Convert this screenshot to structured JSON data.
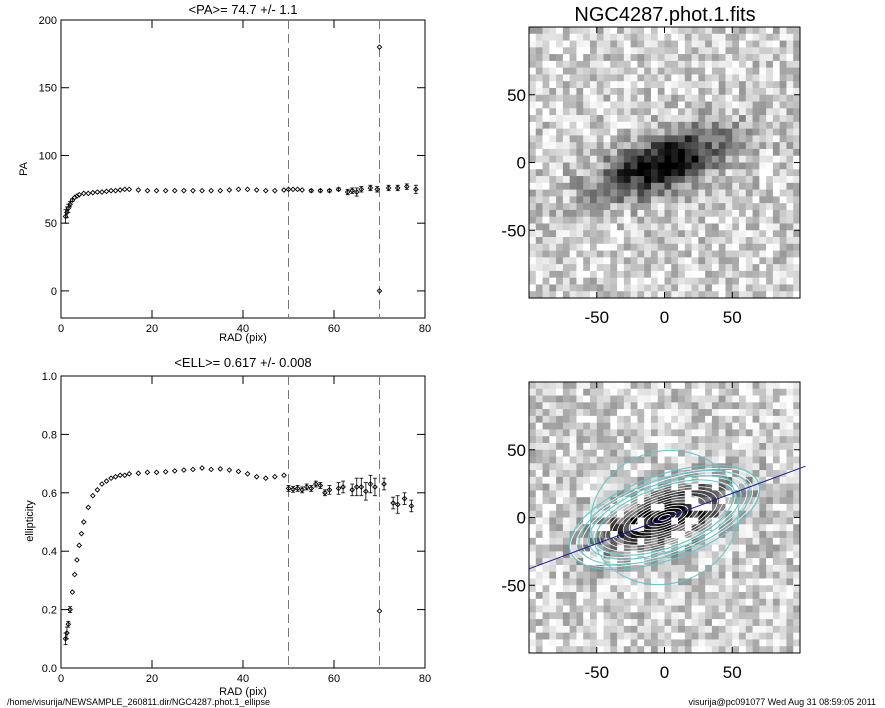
{
  "page": {
    "footer_left": "/home/visurija/NEWSAMPLE_260811.dir/NGC4287.phot.1_ellipse",
    "footer_right": "visurija@pc091077  Wed Aug 31 08:59:05 2011"
  },
  "chart_data": [
    {
      "type": "scatter",
      "title": "<PA>=  74.7 +/-   1.1",
      "xlabel": "RAD (pix)",
      "ylabel": "PA",
      "xlim": [
        0,
        80
      ],
      "ylim": [
        -20,
        200
      ],
      "xticks": [
        0,
        20,
        40,
        60,
        80
      ],
      "yticks": [
        0,
        50,
        100,
        150,
        200
      ],
      "vlines": [
        50,
        70
      ],
      "points": [
        [
          1.0,
          55,
          5
        ],
        [
          1.3,
          58,
          4
        ],
        [
          1.6,
          61,
          3
        ],
        [
          2.0,
          64,
          2
        ],
        [
          2.5,
          67,
          1
        ],
        [
          3.0,
          69,
          0
        ],
        [
          3.5,
          70,
          0
        ],
        [
          4.0,
          71,
          0
        ],
        [
          5,
          72,
          0
        ],
        [
          6,
          72,
          0
        ],
        [
          7,
          72.5,
          0
        ],
        [
          8,
          73,
          0
        ],
        [
          9,
          73,
          0
        ],
        [
          10,
          73.5,
          0
        ],
        [
          11,
          74,
          0
        ],
        [
          12,
          74,
          0
        ],
        [
          13,
          74.5,
          0
        ],
        [
          14,
          75,
          0
        ],
        [
          15,
          75,
          0
        ],
        [
          17,
          74.5,
          0
        ],
        [
          19,
          74,
          0
        ],
        [
          21,
          74,
          0
        ],
        [
          23,
          74,
          0
        ],
        [
          25,
          74,
          0
        ],
        [
          27,
          74,
          0
        ],
        [
          29,
          74,
          0
        ],
        [
          31,
          74,
          0
        ],
        [
          33,
          74,
          0
        ],
        [
          35,
          74,
          0
        ],
        [
          37,
          74.5,
          0
        ],
        [
          39,
          75,
          0
        ],
        [
          41,
          75,
          0
        ],
        [
          43,
          74.5,
          0
        ],
        [
          45,
          74,
          0
        ],
        [
          47,
          74,
          0
        ],
        [
          49,
          74.5,
          0
        ],
        [
          50,
          75,
          0
        ],
        [
          51,
          75,
          0
        ],
        [
          52,
          75,
          0
        ],
        [
          53,
          74.5,
          0
        ],
        [
          55,
          74,
          1
        ],
        [
          57,
          74,
          1
        ],
        [
          59,
          74,
          1
        ],
        [
          61,
          75,
          1
        ],
        [
          63,
          73,
          2
        ],
        [
          64,
          74,
          2
        ],
        [
          65,
          73,
          3
        ],
        [
          66,
          75,
          2
        ],
        [
          68,
          76,
          2
        ],
        [
          69.5,
          75,
          2
        ],
        [
          70,
          0,
          0
        ],
        [
          70,
          180,
          0
        ],
        [
          72,
          76,
          2
        ],
        [
          74,
          76,
          2
        ],
        [
          76,
          77,
          2
        ],
        [
          78,
          75,
          3
        ]
      ]
    },
    {
      "type": "scatter",
      "title": "<ELL>= 0.617 +/-  0.008",
      "xlabel": "RAD (pix)",
      "ylabel": "ellipticity",
      "xlim": [
        0,
        80
      ],
      "ylim": [
        0,
        1
      ],
      "xticks": [
        0,
        20,
        40,
        60,
        80
      ],
      "yticks": [
        0.0,
        0.2,
        0.4,
        0.6,
        0.8,
        1.0
      ],
      "vlines": [
        50,
        70
      ],
      "points": [
        [
          1.0,
          0.1,
          0.02
        ],
        [
          1.3,
          0.12,
          0.02
        ],
        [
          1.6,
          0.15,
          0.01
        ],
        [
          2.0,
          0.2,
          0.01
        ],
        [
          2.5,
          0.26,
          0
        ],
        [
          3.0,
          0.32,
          0
        ],
        [
          3.5,
          0.37,
          0
        ],
        [
          4.0,
          0.42,
          0
        ],
        [
          4.5,
          0.46,
          0
        ],
        [
          5,
          0.5,
          0
        ],
        [
          6,
          0.55,
          0
        ],
        [
          7,
          0.59,
          0
        ],
        [
          8,
          0.61,
          0
        ],
        [
          9,
          0.63,
          0
        ],
        [
          10,
          0.64,
          0
        ],
        [
          11,
          0.65,
          0
        ],
        [
          12,
          0.655,
          0
        ],
        [
          13,
          0.66,
          0
        ],
        [
          14,
          0.66,
          0
        ],
        [
          15,
          0.665,
          0
        ],
        [
          17,
          0.667,
          0
        ],
        [
          19,
          0.67,
          0
        ],
        [
          21,
          0.67,
          0
        ],
        [
          23,
          0.672,
          0
        ],
        [
          25,
          0.675,
          0
        ],
        [
          27,
          0.678,
          0
        ],
        [
          29,
          0.68,
          0
        ],
        [
          31,
          0.685,
          0
        ],
        [
          33,
          0.68,
          0
        ],
        [
          35,
          0.682,
          0
        ],
        [
          37,
          0.678,
          0
        ],
        [
          39,
          0.673,
          0
        ],
        [
          41,
          0.665,
          0
        ],
        [
          43,
          0.655,
          0
        ],
        [
          45,
          0.65,
          0
        ],
        [
          47,
          0.655,
          0
        ],
        [
          49,
          0.66,
          0
        ],
        [
          50,
          0.615,
          0.01
        ],
        [
          51,
          0.612,
          0.01
        ],
        [
          52,
          0.615,
          0.01
        ],
        [
          53,
          0.61,
          0.01
        ],
        [
          54,
          0.62,
          0.01
        ],
        [
          55,
          0.615,
          0.01
        ],
        [
          56,
          0.63,
          0.01
        ],
        [
          57,
          0.625,
          0.01
        ],
        [
          58,
          0.6,
          0.01
        ],
        [
          59,
          0.61,
          0.015
        ],
        [
          61,
          0.615,
          0.02
        ],
        [
          62,
          0.62,
          0.02
        ],
        [
          64,
          0.61,
          0.02
        ],
        [
          65,
          0.62,
          0.03
        ],
        [
          66,
          0.62,
          0.03
        ],
        [
          67,
          0.605,
          0.03
        ],
        [
          68,
          0.63,
          0.03
        ],
        [
          69,
          0.62,
          0.03
        ],
        [
          70,
          0.195,
          0
        ],
        [
          71,
          0.63,
          0.02
        ],
        [
          73,
          0.565,
          0.02
        ],
        [
          74,
          0.56,
          0.03
        ],
        [
          75.5,
          0.58,
          0.02
        ],
        [
          77,
          0.555,
          0.02
        ]
      ]
    },
    {
      "type": "heatmap",
      "title": "NGC4287.phot.1.fits",
      "xlim": [
        -100,
        100
      ],
      "ylim": [
        -100,
        100
      ],
      "xticks": [
        -50,
        0,
        50
      ],
      "yticks": [
        -50,
        0,
        50
      ],
      "galaxy_center": [
        0,
        0
      ],
      "galaxy_pa_deg": 74.7,
      "galaxy_ellipticity": 0.617,
      "colors": "grayscale"
    },
    {
      "type": "heatmap",
      "xlim": [
        -100,
        100
      ],
      "ylim": [
        -100,
        100
      ],
      "xticks": [
        -50,
        0,
        50
      ],
      "yticks": [
        -50,
        0,
        50
      ],
      "isophote_color": "#ffffff",
      "outer_isophote_color": "#5fc9c9",
      "major_axis_color": "#1a1aa0",
      "colors": "grayscale"
    }
  ]
}
